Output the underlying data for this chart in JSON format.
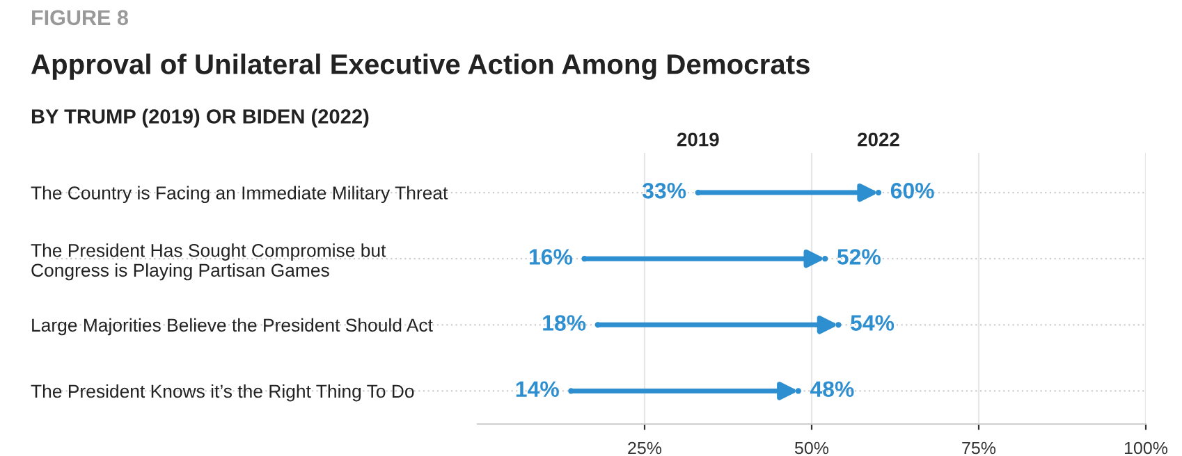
{
  "chart_data": {
    "type": "scatter",
    "orientation": "horizontal",
    "title": "Approval of Unilateral Executive Action Among Democrats",
    "subtitle": "BY TRUMP (2019) OR BIDEN (2022)",
    "annotations": [
      "FIGURE 8"
    ],
    "categories": [
      "The Country is Facing an Immediate Military Threat",
      "The President Has Sought Compromise but\nCongress is Playing Partisan Games",
      "Large Majorities Believe the President Should Act",
      "The President Knows it’s the Right Thing To Do"
    ],
    "series": [
      {
        "name": "2019",
        "color": "#2e8fd0",
        "values": [
          33,
          16,
          18,
          14
        ]
      },
      {
        "name": "2022",
        "color": "#2e8fd0",
        "values": [
          60,
          52,
          54,
          48
        ]
      }
    ],
    "xlim": [
      0,
      100
    ],
    "xticks": [
      {
        "value": 25,
        "label": "25%"
      },
      {
        "value": 50,
        "label": "50%"
      },
      {
        "value": 75,
        "label": "75%"
      },
      {
        "value": 100,
        "label": "100%"
      }
    ],
    "value_labels": [
      [
        "33%",
        "16%",
        "18%",
        "14%"
      ],
      [
        "60%",
        "52%",
        "54%",
        "48%"
      ]
    ],
    "grid": true
  }
}
